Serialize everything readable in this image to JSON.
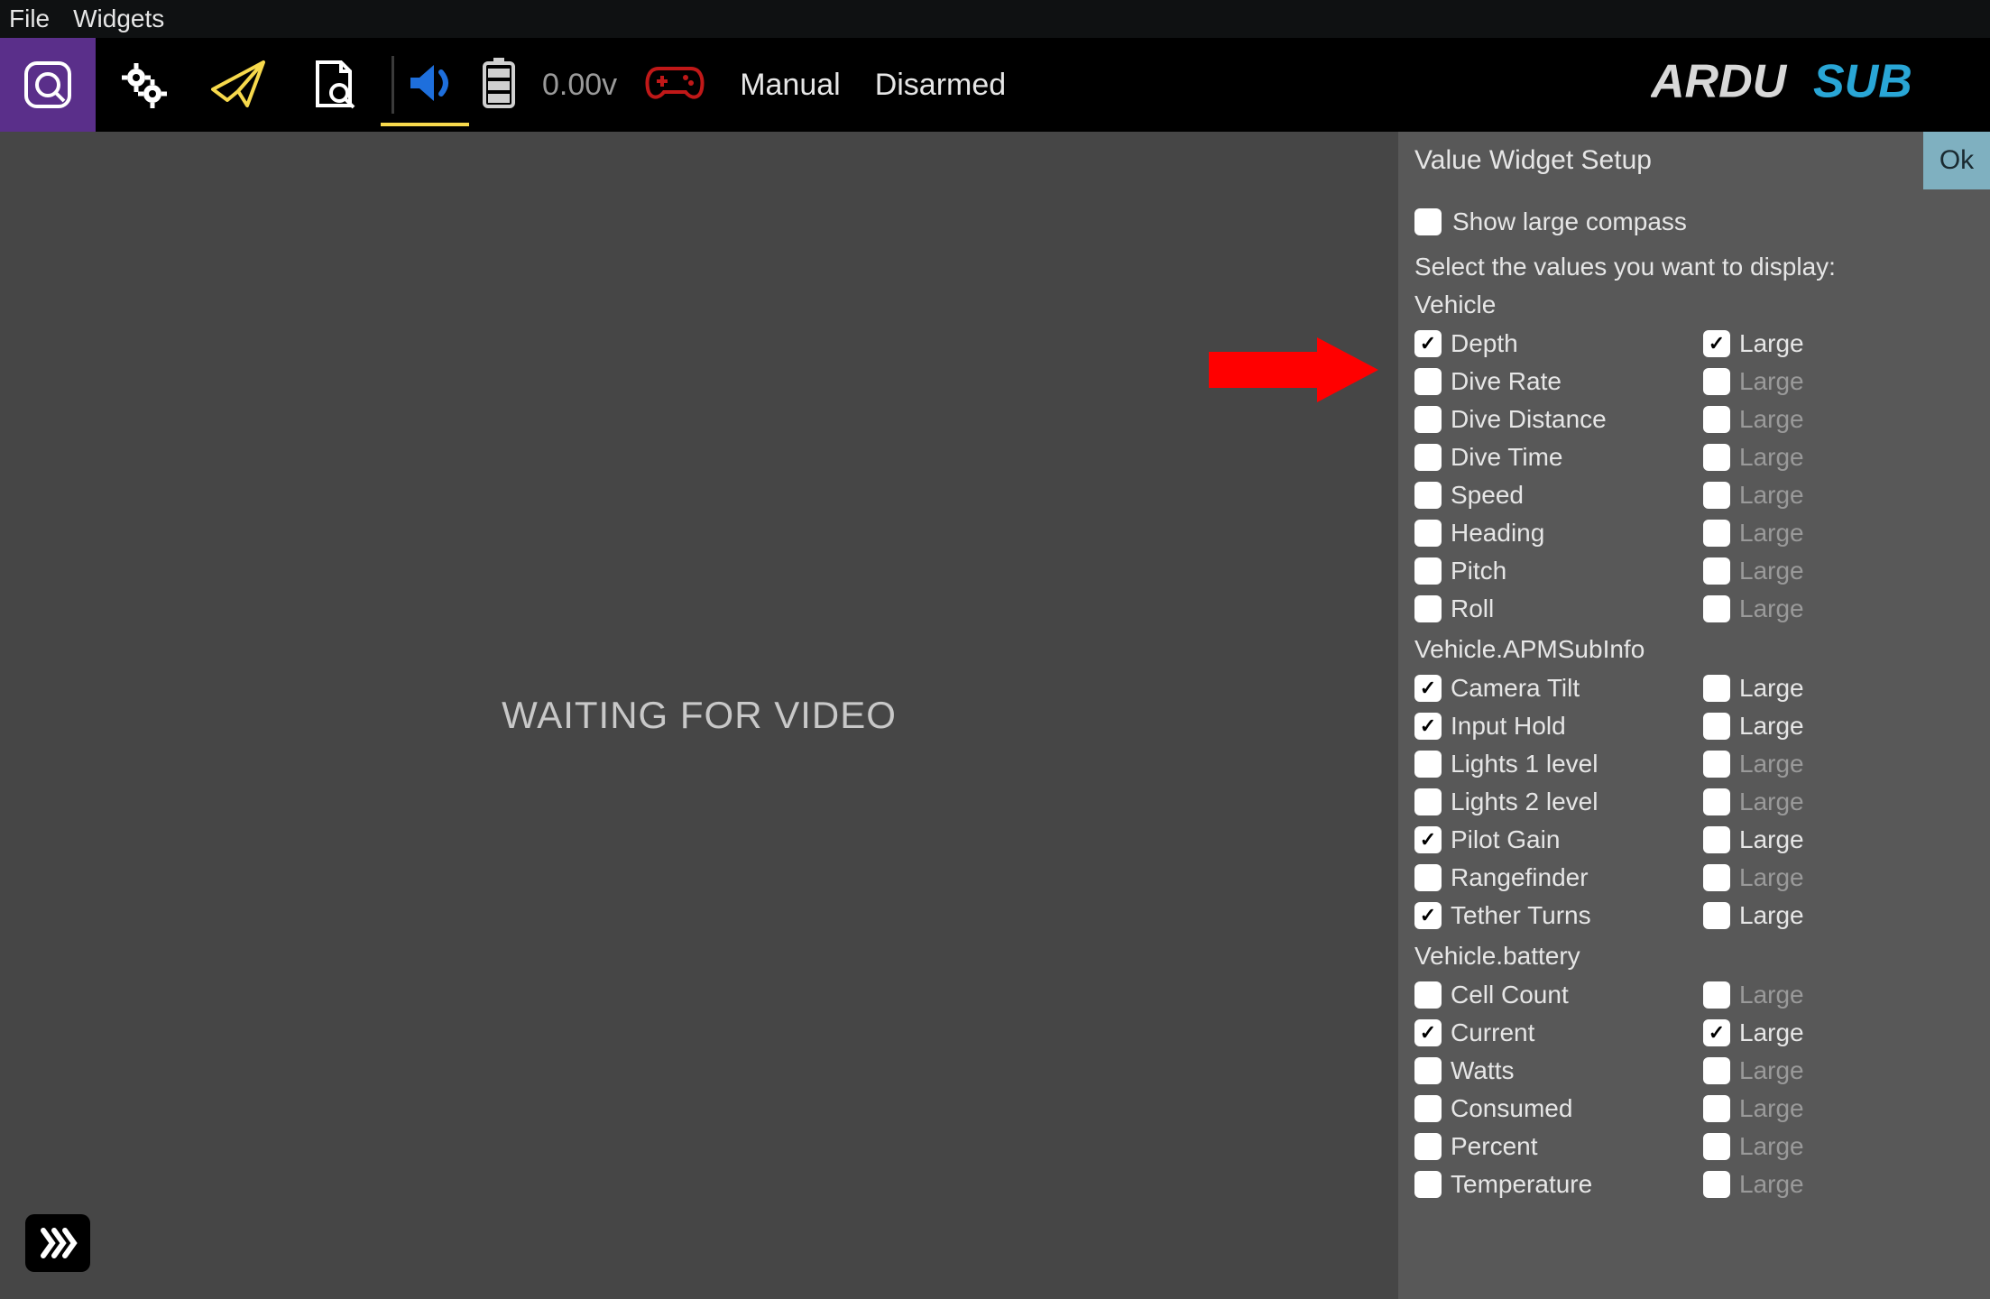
{
  "menubar": {
    "file": "File",
    "widgets": "Widgets"
  },
  "toolbar": {
    "voltage": "0.00v",
    "mode": "Manual",
    "armed": "Disarmed",
    "logo_text_left": "ARDU",
    "logo_text_right": "SUB",
    "colors": {
      "active_bg": "#5a2f8a",
      "send_icon": "#f7d94c",
      "speaker_icon": "#1e6fdc",
      "gamepad_icon": "#c01818",
      "battery_icon": "#d0d0d0",
      "logo_left": "#d8d8d8",
      "logo_right": "#29a6d6"
    }
  },
  "video": {
    "waiting": "WAITING FOR VIDEO"
  },
  "panel": {
    "title": "Value Widget Setup",
    "ok": "Ok",
    "show_large_compass": {
      "label": "Show large compass",
      "checked": false
    },
    "instruction": "Select the values you want to display:",
    "groups": [
      {
        "label": "Vehicle",
        "items": [
          {
            "label": "Depth",
            "checked": true,
            "large_checked": true
          },
          {
            "label": "Dive Rate",
            "checked": false,
            "large_checked": false
          },
          {
            "label": "Dive Distance",
            "checked": false,
            "large_checked": false
          },
          {
            "label": "Dive Time",
            "checked": false,
            "large_checked": false
          },
          {
            "label": "Speed",
            "checked": false,
            "large_checked": false
          },
          {
            "label": "Heading",
            "checked": false,
            "large_checked": false
          },
          {
            "label": "Pitch",
            "checked": false,
            "large_checked": false
          },
          {
            "label": "Roll",
            "checked": false,
            "large_checked": false
          }
        ]
      },
      {
        "label": "Vehicle.APMSubInfo",
        "items": [
          {
            "label": "Camera Tilt",
            "checked": true,
            "large_checked": false
          },
          {
            "label": "Input Hold",
            "checked": true,
            "large_checked": false
          },
          {
            "label": "Lights 1 level",
            "checked": false,
            "large_checked": false
          },
          {
            "label": "Lights 2 level",
            "checked": false,
            "large_checked": false
          },
          {
            "label": "Pilot Gain",
            "checked": true,
            "large_checked": false
          },
          {
            "label": "Rangefinder",
            "checked": false,
            "large_checked": false
          },
          {
            "label": "Tether Turns",
            "checked": true,
            "large_checked": false
          }
        ]
      },
      {
        "label": "Vehicle.battery",
        "items": [
          {
            "label": "Cell Count",
            "checked": false,
            "large_checked": false
          },
          {
            "label": "Current",
            "checked": true,
            "large_checked": true
          },
          {
            "label": "Watts",
            "checked": false,
            "large_checked": false
          },
          {
            "label": "Consumed",
            "checked": false,
            "large_checked": false
          },
          {
            "label": "Percent",
            "checked": false,
            "large_checked": false
          },
          {
            "label": "Temperature",
            "checked": false,
            "large_checked": false
          }
        ]
      }
    ],
    "large_word": "Large",
    "colors": {
      "panel_bg": "#585858",
      "ok_bg": "#7fb0c0",
      "dim_text": "#9a9a9a",
      "text": "#e6e6e6"
    }
  },
  "annotation": {
    "arrow_color": "#ff0000"
  }
}
